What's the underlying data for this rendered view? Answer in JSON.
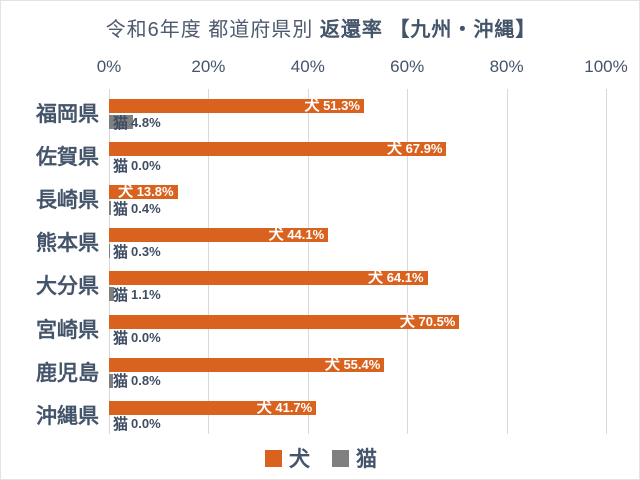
{
  "title": {
    "full": "令和6年度 都道府県別 返還率 【九州・沖縄】",
    "regular": "令和6年度 都道府県別 ",
    "emphasis": "返還率 【九州・沖縄】"
  },
  "chart_data": {
    "type": "bar",
    "orientation": "horizontal",
    "title": "令和6年度 都道府県別 返還率 【九州・沖縄】",
    "categories": [
      "福岡県",
      "佐賀県",
      "長崎県",
      "熊本県",
      "大分県",
      "宮崎県",
      "鹿児島",
      "沖縄県"
    ],
    "series": [
      {
        "name": "犬",
        "color": "#D9631E",
        "values": [
          51.3,
          67.9,
          13.8,
          44.1,
          64.1,
          70.5,
          55.4,
          41.7
        ]
      },
      {
        "name": "猫",
        "color": "#808080",
        "values": [
          4.8,
          0.0,
          0.4,
          0.3,
          1.1,
          0.0,
          0.8,
          0.0
        ]
      }
    ],
    "x_ticks": [
      "0%",
      "20%",
      "40%",
      "60%",
      "80%",
      "100%"
    ],
    "xlim": [
      0,
      100
    ],
    "grid": true,
    "value_label_format": "{series} {value}%",
    "legend_position": "bottom"
  },
  "colors": {
    "dog_bar": "#D9631E",
    "cat_bar": "#808080",
    "text_dark": "#44546A",
    "value_text": "#3f4d63",
    "bar_label_text": "#ffffff",
    "gridline": "#d9d9d9"
  },
  "legend": {
    "items": [
      {
        "label": "犬",
        "color": "#D9631E"
      },
      {
        "label": "猫",
        "color": "#808080"
      }
    ]
  }
}
